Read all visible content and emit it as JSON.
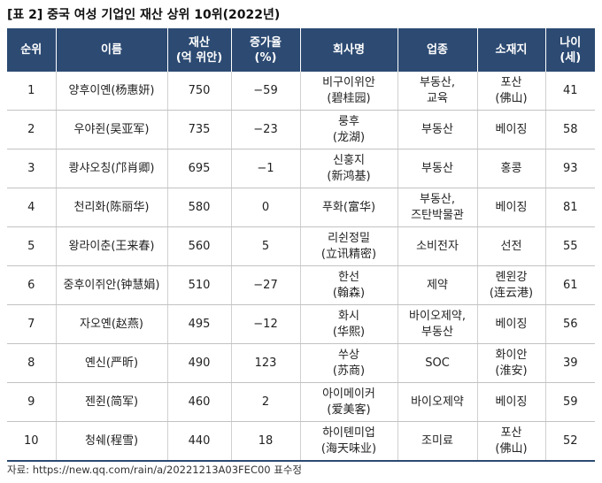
{
  "title": "[표 2] 중국 여성 기업인 재산 상위 10위(2022년)",
  "headers": [
    [
      "순위"
    ],
    [
      "이름"
    ],
    [
      "재산",
      "(억 위안)"
    ],
    [
      "증가율",
      "(%)"
    ],
    [
      "회사명"
    ],
    [
      "업종"
    ],
    [
      "소재지"
    ],
    [
      "나이",
      "(세)"
    ]
  ],
  "rows": [
    {
      "rank": "1",
      "name": "양후이옌(杨惠妍)",
      "wealth": "750",
      "growth": "−59",
      "company": [
        "비구이위안",
        "(碧桂园)"
      ],
      "industry": [
        "부동산,",
        "교육"
      ],
      "location": [
        "포산",
        "(佛山)"
      ],
      "age": "41"
    },
    {
      "rank": "2",
      "name": "우야쥔(吴亚军)",
      "wealth": "735",
      "growth": "−23",
      "company": [
        "룽후",
        "(龙湖)"
      ],
      "industry": [
        "부동산"
      ],
      "location": [
        "베이징"
      ],
      "age": "58"
    },
    {
      "rank": "3",
      "name": "쾅샤오칭(邝肖卿)",
      "wealth": "695",
      "growth": "−1",
      "company": [
        "신훙지",
        "(新鸿基)"
      ],
      "industry": [
        "부동산"
      ],
      "location": [
        "홍콩"
      ],
      "age": "93"
    },
    {
      "rank": "4",
      "name": "천리화(陈丽华)",
      "wealth": "580",
      "growth": "0",
      "company": [
        "푸화(富华)"
      ],
      "industry": [
        "부동산,",
        "즈탄박물관"
      ],
      "location": [
        "베이징"
      ],
      "age": "81"
    },
    {
      "rank": "5",
      "name": "왕라이춘(王来春)",
      "wealth": "560",
      "growth": "5",
      "company": [
        "리쉰정밀",
        "(立讯精密)"
      ],
      "industry": [
        "소비전자"
      ],
      "location": [
        "선전"
      ],
      "age": "55"
    },
    {
      "rank": "6",
      "name": "중후이쥐안(钟慧娟)",
      "wealth": "510",
      "growth": "−27",
      "company": [
        "한선",
        "(翰森)"
      ],
      "industry": [
        "제약"
      ],
      "location": [
        "롄윈강",
        "(连云港)"
      ],
      "age": "61"
    },
    {
      "rank": "7",
      "name": "자오옌(赵燕)",
      "wealth": "495",
      "growth": "−12",
      "company": [
        "화시",
        "(华熙)"
      ],
      "industry": [
        "바이오제약,",
        "부동산"
      ],
      "location": [
        "베이징"
      ],
      "age": "56"
    },
    {
      "rank": "8",
      "name": "옌신(严昕)",
      "wealth": "490",
      "growth": "123",
      "company": [
        "쑤상",
        "(苏商)"
      ],
      "industry": [
        "SOC"
      ],
      "location": [
        "화이안",
        "(淮安)"
      ],
      "age": "39"
    },
    {
      "rank": "9",
      "name": "젠쥔(简军)",
      "wealth": "460",
      "growth": "2",
      "company": [
        "아이메이커",
        "(爱美客)"
      ],
      "industry": [
        "바이오제약"
      ],
      "location": [
        "베이징"
      ],
      "age": "59"
    },
    {
      "rank": "10",
      "name": "청쉐(程雪)",
      "wealth": "440",
      "growth": "18",
      "company": [
        "하이톈미업",
        "(海天味业)"
      ],
      "industry": [
        "조미료"
      ],
      "location": [
        "포산",
        "(佛山)"
      ],
      "age": "52"
    }
  ],
  "source": "자료: https://new.qq.com/rain/a/20221213A03FEC00 표수정"
}
